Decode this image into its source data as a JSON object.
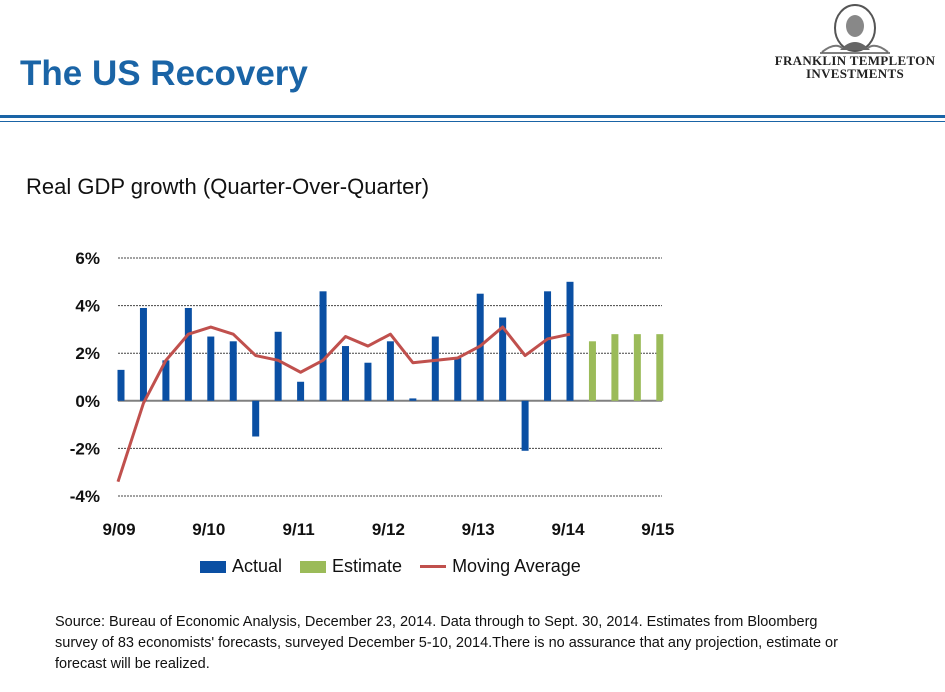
{
  "header": {
    "title": "The US Recovery",
    "logo_line1": "FRANKLIN TEMPLETON",
    "logo_line2": "INVESTMENTS"
  },
  "colors": {
    "brand": "#1a64a6",
    "actual": "#0a4fa3",
    "estimate": "#9bbb59",
    "moving_average": "#c0504d"
  },
  "chart_data": {
    "type": "bar",
    "title": "Real GDP growth (Quarter-Over-Quarter)",
    "xlabel": "",
    "ylabel": "",
    "ylim": [
      -4,
      6
    ],
    "yticks": [
      "6%",
      "4%",
      "2%",
      "0%",
      "-2%",
      "-4%"
    ],
    "ytick_values": [
      6,
      4,
      2,
      0,
      -2,
      -4
    ],
    "xticks": [
      "9/09",
      "9/10",
      "9/11",
      "9/12",
      "9/13",
      "9/14",
      "9/15"
    ],
    "xtick_quarter_index": [
      0,
      4,
      8,
      12,
      16,
      20,
      24
    ],
    "grid": true,
    "legend_position": "bottom",
    "series": [
      {
        "name": "Actual",
        "type": "bar",
        "start_index": 0,
        "values": [
          1.3,
          3.9,
          1.7,
          3.9,
          2.7,
          2.5,
          -1.5,
          2.9,
          0.8,
          4.6,
          2.3,
          1.6,
          2.5,
          0.1,
          2.7,
          1.8,
          4.5,
          3.5,
          -2.1,
          4.6,
          5.0
        ]
      },
      {
        "name": "Estimate",
        "type": "bar",
        "start_index": 21,
        "values": [
          2.5,
          2.8,
          2.8,
          2.8
        ]
      },
      {
        "name": "Moving Average",
        "type": "line",
        "start_index": 0,
        "values": [
          -3.4,
          -0.1,
          1.7,
          2.8,
          3.1,
          2.8,
          1.9,
          1.7,
          1.2,
          1.7,
          2.7,
          2.3,
          2.8,
          1.6,
          1.7,
          1.8,
          2.3,
          3.1,
          1.9,
          2.6,
          2.8
        ]
      }
    ]
  },
  "source": "Source: Bureau of Economic Analysis, December 23, 2014. Data through to Sept. 30, 2014. Estimates from Bloomberg survey of 83 economists' forecasts, surveyed December 5-10, 2014.There is no assurance that any projection, estimate or forecast will be realized."
}
